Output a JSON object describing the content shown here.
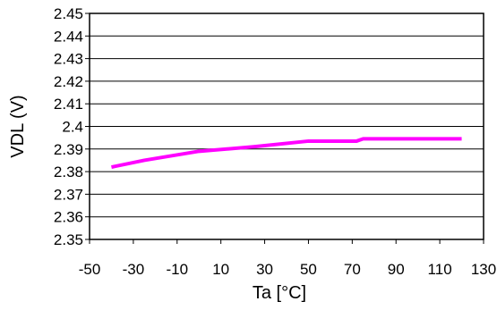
{
  "chart_data": {
    "type": "line",
    "title": "",
    "xlabel": "Ta [°C]",
    "ylabel": "VDL  (V)",
    "xlim": [
      -50,
      130
    ],
    "ylim": [
      2.35,
      2.45
    ],
    "x_ticks": [
      "-50",
      "-30",
      "-10",
      "10",
      "30",
      "50",
      "70",
      "90",
      "110",
      "130"
    ],
    "y_ticks": [
      "2.35",
      "2.36",
      "2.37",
      "2.38",
      "2.39",
      "2.4",
      "2.41",
      "2.42",
      "2.43",
      "2.44",
      "2.45"
    ],
    "grid": "horizontal",
    "series": [
      {
        "color": "#ff00ff",
        "x": [
          -40,
          -25,
          0,
          25,
          50,
          72,
          75,
          100,
          120
        ],
        "y": [
          2.382,
          2.385,
          2.389,
          2.391,
          2.3935,
          2.3935,
          2.3945,
          2.3945,
          2.3945
        ]
      }
    ]
  }
}
